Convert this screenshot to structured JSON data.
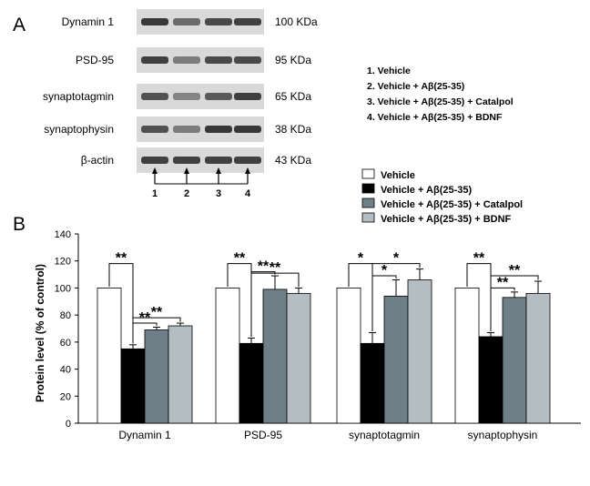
{
  "panel_a": {
    "letter": "A",
    "blots": [
      {
        "label": "Dynamin 1",
        "size": "100 KDa",
        "intensity": [
          0.85,
          0.55,
          0.75,
          0.8
        ]
      },
      {
        "label": "PSD-95",
        "size": "95 KDa",
        "intensity": [
          0.8,
          0.45,
          0.75,
          0.75
        ]
      },
      {
        "label": "synaptotagmin",
        "size": "65 KDa",
        "intensity": [
          0.7,
          0.4,
          0.65,
          0.8
        ]
      },
      {
        "label": "synaptophysin",
        "size": "38 KDa",
        "intensity": [
          0.7,
          0.45,
          0.85,
          0.85
        ]
      },
      {
        "label": "β-actin",
        "size": "43 KDa",
        "intensity": [
          0.8,
          0.8,
          0.8,
          0.8
        ]
      }
    ],
    "lane_numbers": [
      "1",
      "2",
      "3",
      "4"
    ],
    "legend": [
      "1. Vehicle",
      "2. Vehicle + Aβ(25-35)",
      "3. Vehicle + Aβ(25-35) + Catalpol",
      "4. Vehicle + Aβ(25-35) + BDNF"
    ]
  },
  "chart_data": {
    "type": "bar",
    "panel_letter": "B",
    "ylabel": "Protein level (% of control)",
    "ylim": [
      0,
      140
    ],
    "yticks": [
      "0",
      "20",
      "40",
      "60",
      "80",
      "100",
      "120",
      "140"
    ],
    "categories": [
      "Dynamin 1",
      "PSD-95",
      "synaptotagmin",
      "synaptophysin"
    ],
    "series": [
      {
        "name": "Vehicle",
        "color": "#ffffff",
        "values": [
          100,
          100,
          100,
          100
        ],
        "errors": [
          0,
          0,
          0,
          0
        ]
      },
      {
        "name": "Vehicle + Aβ(25-35)",
        "color": "#000000",
        "values": [
          55,
          59,
          59,
          64
        ],
        "errors": [
          3,
          4,
          8,
          3
        ]
      },
      {
        "name": "Vehicle + Aβ(25-35) + Catalpol",
        "color": "#6f7f87",
        "values": [
          69,
          99,
          94,
          93
        ],
        "errors": [
          2,
          10,
          12,
          4
        ]
      },
      {
        "name": "Vehicle + Aβ(25-35) + BDNF",
        "color": "#b4bec2",
        "values": [
          72,
          96,
          106,
          96
        ],
        "errors": [
          2,
          4,
          8,
          9
        ]
      }
    ],
    "significance": [
      {
        "category": 0,
        "from": 0,
        "to": 1,
        "label": "**"
      },
      {
        "category": 0,
        "from": 1,
        "to": 2,
        "label": "**"
      },
      {
        "category": 0,
        "from": 1,
        "to": 3,
        "label": "**"
      },
      {
        "category": 1,
        "from": 0,
        "to": 1,
        "label": "**"
      },
      {
        "category": 1,
        "from": 1,
        "to": 2,
        "label": "**"
      },
      {
        "category": 1,
        "from": 1,
        "to": 3,
        "label": "**"
      },
      {
        "category": 2,
        "from": 0,
        "to": 1,
        "label": "*"
      },
      {
        "category": 2,
        "from": 1,
        "to": 2,
        "label": "*"
      },
      {
        "category": 2,
        "from": 1,
        "to": 3,
        "label": "*"
      },
      {
        "category": 3,
        "from": 0,
        "to": 1,
        "label": "**"
      },
      {
        "category": 3,
        "from": 1,
        "to": 2,
        "label": "**"
      },
      {
        "category": 3,
        "from": 1,
        "to": 3,
        "label": "**"
      }
    ]
  }
}
